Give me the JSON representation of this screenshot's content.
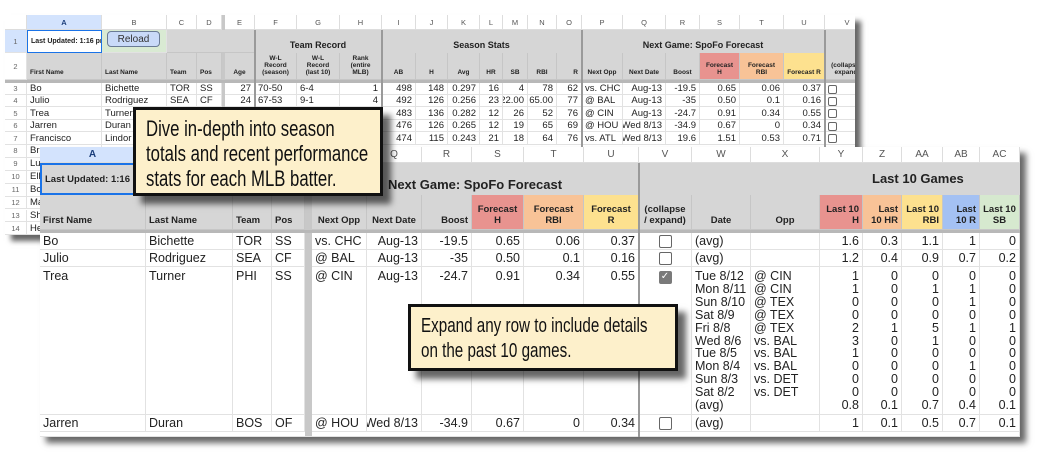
{
  "colors": {
    "forecast_h": "#e8938f",
    "forecast_rbi": "#f8c397",
    "forecast_r": "#fde18f",
    "last10_r": "#a4c1f3",
    "last10_sb": "#d6e9cf",
    "header_gray": "#d6d6d6",
    "callout_bg": "#fdf0cb",
    "selected_cell": "#d3e3fd",
    "reload_button": "#c9daf8",
    "reload_cell": "#d9ead3"
  },
  "bg": {
    "col_letters": [
      "A",
      "B",
      "C",
      "D",
      "E",
      "F",
      "G",
      "H",
      "I",
      "J",
      "K",
      "L",
      "M",
      "N",
      "O",
      "P",
      "Q",
      "R",
      "S",
      "T",
      "U",
      "V"
    ],
    "row_numbers": [
      "1",
      "2",
      "3",
      "4",
      "5",
      "6",
      "7",
      "8",
      "9",
      "10",
      "11",
      "12",
      "13",
      "14"
    ],
    "last_updated": "Last Updated: 1:16 pm",
    "reload_label": "Reload",
    "group_headers": {
      "team_record": "Team Record",
      "season_stats": "Season Stats",
      "next_game": "Next Game: SpoFo Forecast"
    },
    "headers": [
      "First Name",
      "Last Name",
      "Team",
      "Pos",
      "Age",
      "W-L Record (season)",
      "W-L Record (last 10)",
      "Rank (entire MLB)",
      "AB",
      "H",
      "Avg",
      "HR",
      "SB",
      "RBI",
      "R",
      "Next Opp",
      "Next Date",
      "Boost",
      "Forecast H",
      "Forecast RBI",
      "Forecast R",
      "(collapse / expand)"
    ],
    "rows": [
      {
        "cells": [
          "Bo",
          "Bichette",
          "TOR",
          "SS",
          "27",
          "70-50",
          "6-4",
          "1",
          "498",
          "148",
          "0.297",
          "16",
          "4",
          "78",
          "62",
          "vs. CHC",
          "Aug-13",
          "-19.5",
          "0.65",
          "0.06",
          "0.37"
        ],
        "checked": false
      },
      {
        "cells": [
          "Julio",
          "Rodriguez",
          "SEA",
          "CF",
          "24",
          "67-53",
          "9-1",
          "4",
          "492",
          "126",
          "0.256",
          "23",
          "22.00",
          "65.00",
          "77",
          "@ BAL",
          "Aug-13",
          "-35",
          "0.50",
          "0.1",
          "0.16"
        ],
        "checked": false
      },
      {
        "cells": [
          "Trea",
          "Turner",
          "",
          "",
          "",
          "",
          "",
          "",
          "483",
          "136",
          "0.282",
          "12",
          "26",
          "52",
          "76",
          "@ CIN",
          "Aug-13",
          "-24.7",
          "0.91",
          "0.34",
          "0.55"
        ],
        "checked": false
      },
      {
        "cells": [
          "Jarren",
          "Duran",
          "",
          "",
          "",
          "",
          "",
          "",
          "476",
          "126",
          "0.265",
          "12",
          "19",
          "65",
          "69",
          "@ HOU",
          "Wed 8/13",
          "-34.9",
          "0.67",
          "0",
          "0.34"
        ],
        "checked": false
      },
      {
        "cells": [
          "Francisco",
          "Lindor",
          "",
          "",
          "",
          "",
          "",
          "",
          "474",
          "115",
          "0.243",
          "21",
          "18",
          "64",
          "76",
          "vs. ATL",
          "Wed 8/13",
          "19.6",
          "1.51",
          "0.53",
          "0.71"
        ],
        "checked": false
      }
    ],
    "truncated_rows": [
      "Br",
      "Lu",
      "Ell",
      "Bo",
      "Ma",
      "Sh",
      "He"
    ]
  },
  "fg": {
    "col_letters": [
      "A",
      "",
      "",
      "",
      "",
      "Q",
      "R",
      "S",
      "T",
      "U",
      "V",
      "W",
      "X",
      "Y",
      "Z",
      "AA",
      "AB",
      "AC"
    ],
    "last_updated": "Last Updated: 1:16 p",
    "group_headers": {
      "next_game": "Next Game: SpoFo Forecast",
      "last10": "Last 10 Games"
    },
    "headers": [
      "First Name",
      "Last Name",
      "Team",
      "Pos",
      "Next Opp",
      "Next Date",
      "Boost",
      "Forecast H",
      "Forecast RBI",
      "Forecast R",
      "(collapse / expand)",
      "Date",
      "Opp",
      "Last 10 H",
      "Last 10 HR",
      "Last 10 RBI",
      "Last 10 R",
      "Last 10 SB"
    ],
    "rows": [
      {
        "cells": [
          "Bo",
          "Bichette",
          "TOR",
          "SS",
          "vs. CHC",
          "Aug-13",
          "-19.5",
          "0.65",
          "0.06",
          "0.37"
        ],
        "checked": false,
        "games": [
          {
            "date": "(avg)",
            "opp": "",
            "values": [
              "1.6",
              "0.3",
              "1.1",
              "1",
              "0"
            ]
          }
        ]
      },
      {
        "cells": [
          "Julio",
          "Rodriguez",
          "SEA",
          "CF",
          "@ BAL",
          "Aug-13",
          "-35",
          "0.50",
          "0.1",
          "0.16"
        ],
        "checked": false,
        "games": [
          {
            "date": "(avg)",
            "opp": "",
            "values": [
              "1.2",
              "0.4",
              "0.9",
              "0.7",
              "0.2"
            ]
          }
        ]
      },
      {
        "cells": [
          "Trea",
          "Turner",
          "PHI",
          "SS",
          "@ CIN",
          "Aug-13",
          "-24.7",
          "0.91",
          "0.34",
          "0.55"
        ],
        "checked": true,
        "games": [
          {
            "date": "Tue 8/12",
            "opp": "@ CIN",
            "values": [
              "1",
              "0",
              "0",
              "0",
              "0"
            ]
          },
          {
            "date": "Mon 8/11",
            "opp": "@ CIN",
            "values": [
              "1",
              "0",
              "1",
              "1",
              "0"
            ]
          },
          {
            "date": "Sun 8/10",
            "opp": "@ TEX",
            "values": [
              "0",
              "0",
              "0",
              "1",
              "0"
            ]
          },
          {
            "date": "Sat 8/9",
            "opp": "@ TEX",
            "values": [
              "0",
              "0",
              "0",
              "0",
              "0"
            ]
          },
          {
            "date": "Fri 8/8",
            "opp": "@ TEX",
            "values": [
              "2",
              "1",
              "5",
              "1",
              "1"
            ]
          },
          {
            "date": "Wed 8/6",
            "opp": "vs. BAL",
            "values": [
              "3",
              "0",
              "1",
              "0",
              "0"
            ]
          },
          {
            "date": "Tue 8/5",
            "opp": "vs. BAL",
            "values": [
              "1",
              "0",
              "0",
              "0",
              "0"
            ]
          },
          {
            "date": "Mon 8/4",
            "opp": "vs. BAL",
            "values": [
              "0",
              "0",
              "0",
              "1",
              "0"
            ]
          },
          {
            "date": "Sun 8/3",
            "opp": "vs. DET",
            "values": [
              "0",
              "0",
              "0",
              "0",
              "0"
            ]
          },
          {
            "date": "Sat 8/2",
            "opp": "vs. DET",
            "values": [
              "0",
              "0",
              "0",
              "0",
              "0"
            ]
          },
          {
            "date": "(avg)",
            "opp": "",
            "values": [
              "0.8",
              "0.1",
              "0.7",
              "0.4",
              "0.1"
            ]
          }
        ]
      },
      {
        "cells": [
          "Jarren",
          "Duran",
          "BOS",
          "OF",
          "@ HOU",
          "Wed 8/13",
          "-34.9",
          "0.67",
          "0",
          "0.34"
        ],
        "checked": false,
        "games": [
          {
            "date": "(avg)",
            "opp": "",
            "values": [
              "1",
              "0.1",
              "0.5",
              "0.7",
              "0.1"
            ]
          }
        ]
      }
    ]
  },
  "callouts": [
    {
      "lines": [
        "Dive in-depth into season",
        "totals and recent performance",
        "stats for each MLB batter."
      ]
    },
    {
      "lines": [
        "Expand any row to include details",
        "on the past 10 games."
      ]
    }
  ]
}
